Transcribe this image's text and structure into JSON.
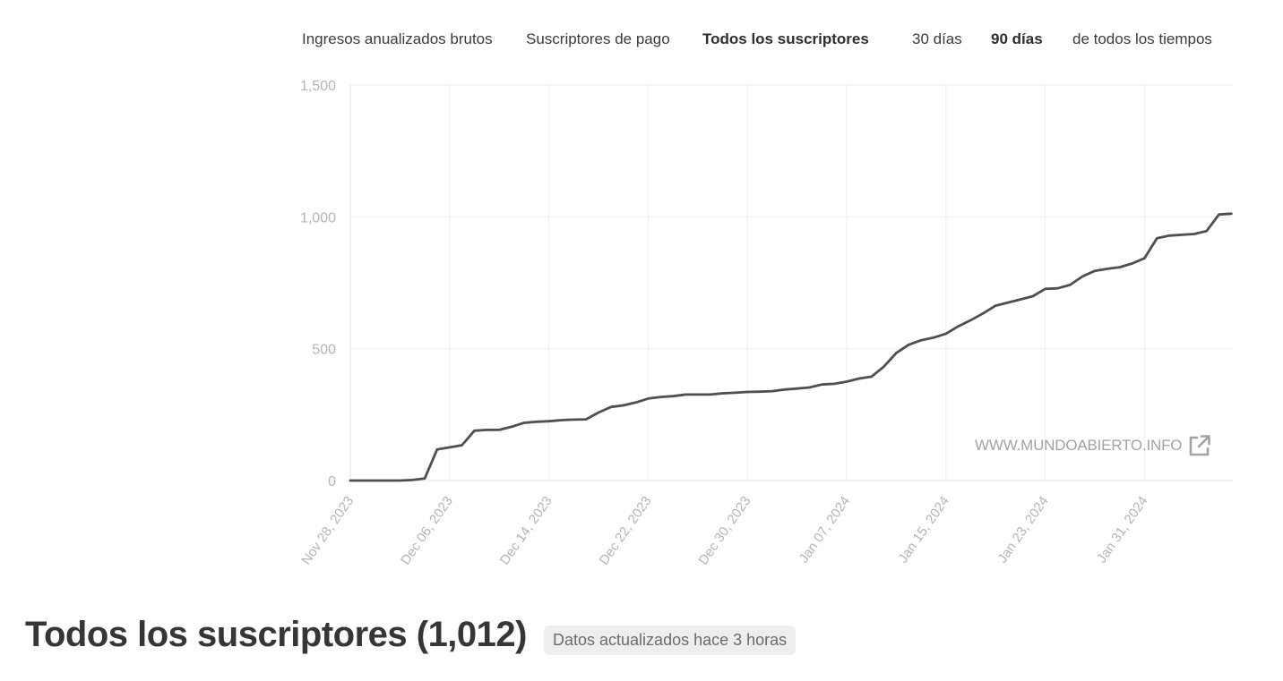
{
  "tabs": {
    "metrics": [
      {
        "label": "Ingresos anualizados brutos",
        "active": false
      },
      {
        "label": "Suscriptores de pago",
        "active": false
      },
      {
        "label": "Todos los suscriptores",
        "active": true
      }
    ],
    "ranges": [
      {
        "label": "30 días",
        "active": false
      },
      {
        "label": "90 días",
        "active": true
      },
      {
        "label": "de todos los tiempos",
        "active": false
      }
    ]
  },
  "watermark": {
    "text": "WWW.MUNDOABIERTO.INFO",
    "icon": "external-link-icon"
  },
  "footer": {
    "title": "Todos los suscriptores (1,012)",
    "updated": "Datos actualizados hace 3 horas"
  },
  "colors": {
    "line": "#4f4f4f",
    "grid": "#eeeeee",
    "axis_text": "#b5b5b5"
  },
  "chart_data": {
    "type": "line",
    "x_start": "2023-11-28",
    "x_ticks": [
      "Nov 28, 2023",
      "Dec 06, 2023",
      "Dec 14, 2023",
      "Dec 22, 2023",
      "Dec 30, 2023",
      "Jan 07, 2024",
      "Jan 15, 2024",
      "Jan 23, 2024",
      "Jan 31, 2024"
    ],
    "y_ticks": [
      "0",
      "500",
      "1,000",
      "1,500"
    ],
    "ylim": [
      0,
      1500
    ],
    "xlim": [
      "2023-11-28",
      "2024-02-05"
    ],
    "grid": true,
    "legend": "none",
    "series": [
      {
        "points": [
          [
            "2023-11-28",
            0
          ],
          [
            "2023-11-29",
            0
          ],
          [
            "2023-11-30",
            0
          ],
          [
            "2023-12-01",
            0
          ],
          [
            "2023-12-02",
            0
          ],
          [
            "2023-12-03",
            2
          ],
          [
            "2023-12-04",
            8
          ],
          [
            "2023-12-05",
            118
          ],
          [
            "2023-12-06",
            126
          ],
          [
            "2023-12-07",
            134
          ],
          [
            "2023-12-08",
            189
          ],
          [
            "2023-12-09",
            192
          ],
          [
            "2023-12-10",
            192
          ],
          [
            "2023-12-11",
            204
          ],
          [
            "2023-12-12",
            219
          ],
          [
            "2023-12-13",
            223
          ],
          [
            "2023-12-14",
            225
          ],
          [
            "2023-12-15",
            229
          ],
          [
            "2023-12-16",
            231
          ],
          [
            "2023-12-17",
            232
          ],
          [
            "2023-12-18",
            258
          ],
          [
            "2023-12-19",
            279
          ],
          [
            "2023-12-20",
            285
          ],
          [
            "2023-12-21",
            296
          ],
          [
            "2023-12-22",
            311
          ],
          [
            "2023-12-23",
            317
          ],
          [
            "2023-12-24",
            320
          ],
          [
            "2023-12-25",
            326
          ],
          [
            "2023-12-26",
            326
          ],
          [
            "2023-12-27",
            326
          ],
          [
            "2023-12-28",
            331
          ],
          [
            "2023-12-29",
            333
          ],
          [
            "2023-12-30",
            336
          ],
          [
            "2023-12-31",
            337
          ],
          [
            "2024-01-01",
            339
          ],
          [
            "2024-01-02",
            345
          ],
          [
            "2024-01-03",
            349
          ],
          [
            "2024-01-04",
            353
          ],
          [
            "2024-01-05",
            364
          ],
          [
            "2024-01-06",
            367
          ],
          [
            "2024-01-07",
            375
          ],
          [
            "2024-01-08",
            387
          ],
          [
            "2024-01-09",
            394
          ],
          [
            "2024-01-10",
            432
          ],
          [
            "2024-01-11",
            484
          ],
          [
            "2024-01-12",
            515
          ],
          [
            "2024-01-13",
            532
          ],
          [
            "2024-01-14",
            542
          ],
          [
            "2024-01-15",
            557
          ],
          [
            "2024-01-16",
            585
          ],
          [
            "2024-01-17",
            608
          ],
          [
            "2024-01-18",
            634
          ],
          [
            "2024-01-19",
            663
          ],
          [
            "2024-01-20",
            675
          ],
          [
            "2024-01-21",
            687
          ],
          [
            "2024-01-22",
            699
          ],
          [
            "2024-01-23",
            727
          ],
          [
            "2024-01-24",
            729
          ],
          [
            "2024-01-25",
            742
          ],
          [
            "2024-01-26",
            774
          ],
          [
            "2024-01-27",
            795
          ],
          [
            "2024-01-28",
            803
          ],
          [
            "2024-01-29",
            809
          ],
          [
            "2024-01-30",
            823
          ],
          [
            "2024-01-31",
            843
          ],
          [
            "2024-02-01",
            919
          ],
          [
            "2024-02-02",
            929
          ],
          [
            "2024-02-03",
            932
          ],
          [
            "2024-02-04",
            935
          ],
          [
            "2024-02-05",
            946
          ],
          [
            "2024-02-06",
            1009
          ],
          [
            "2024-02-07",
            1012
          ]
        ]
      }
    ]
  }
}
